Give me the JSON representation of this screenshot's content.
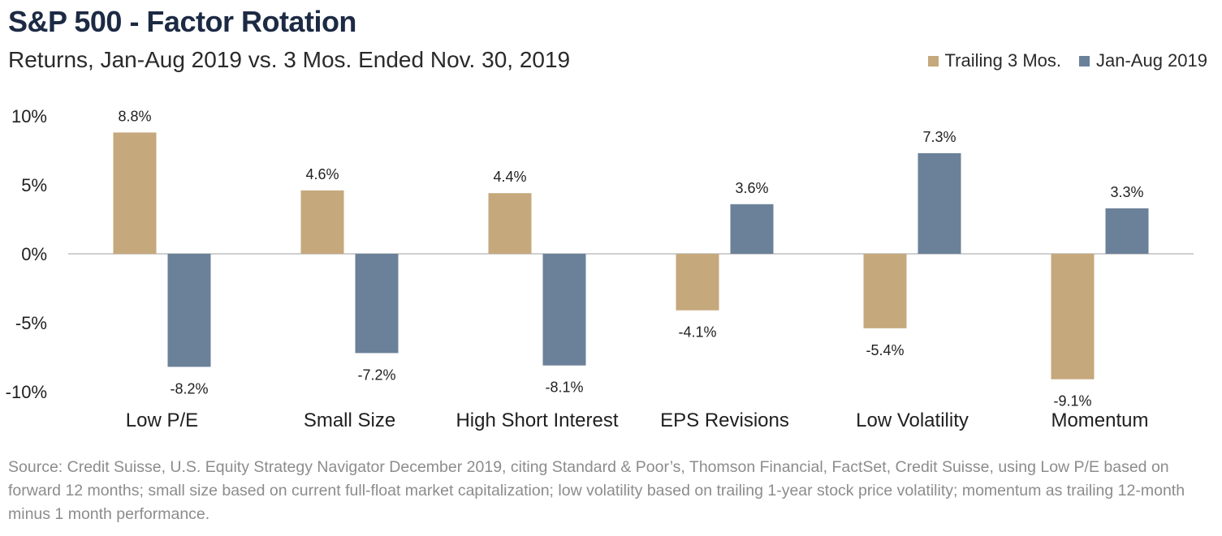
{
  "header": {
    "title": "S&P 500 - Factor Rotation",
    "subtitle": "Returns, Jan-Aug 2019 vs. 3 Mos. Ended Nov. 30, 2019"
  },
  "colors": {
    "trailing": "#c5a87c",
    "janaug": "#6b8199",
    "zero_line": "#bfbfbf"
  },
  "chart_data": {
    "type": "bar",
    "categories": [
      "Low P/E",
      "Small Size",
      "High Short Interest",
      "EPS Revisions",
      "Low Volatility",
      "Momentum"
    ],
    "series": [
      {
        "name": "Trailing 3 Mos.",
        "values": [
          8.8,
          4.6,
          4.4,
          -4.1,
          -5.4,
          -9.1
        ],
        "labels": [
          "8.8%",
          "4.6%",
          "4.4%",
          "-4.1%",
          "-5.4%",
          "-9.1%"
        ]
      },
      {
        "name": "Jan-Aug 2019",
        "values": [
          -8.2,
          -7.2,
          -8.1,
          3.6,
          7.3,
          3.3
        ],
        "labels": [
          "-8.2%",
          "-7.2%",
          "-8.1%",
          "3.6%",
          "7.3%",
          "3.3%"
        ]
      }
    ],
    "yticks": [
      10,
      5,
      0,
      -5,
      -10
    ],
    "ytick_labels": [
      "10%",
      "5%",
      "0%",
      "-5%",
      "-10%"
    ],
    "ylim": [
      -10,
      10
    ],
    "legend_position": "top-right",
    "grid": false
  },
  "footer": {
    "source": "Source: Credit Suisse, U.S. Equity Strategy Navigator December 2019, citing Standard & Poor’s, Thomson Financial, FactSet, Credit Suisse, using Low P/E based on forward 12 months; small size based on current full-float market capitalization; low volatility based on trailing 1-year stock price volatility; momentum as trailing 12-month minus 1 month performance."
  }
}
